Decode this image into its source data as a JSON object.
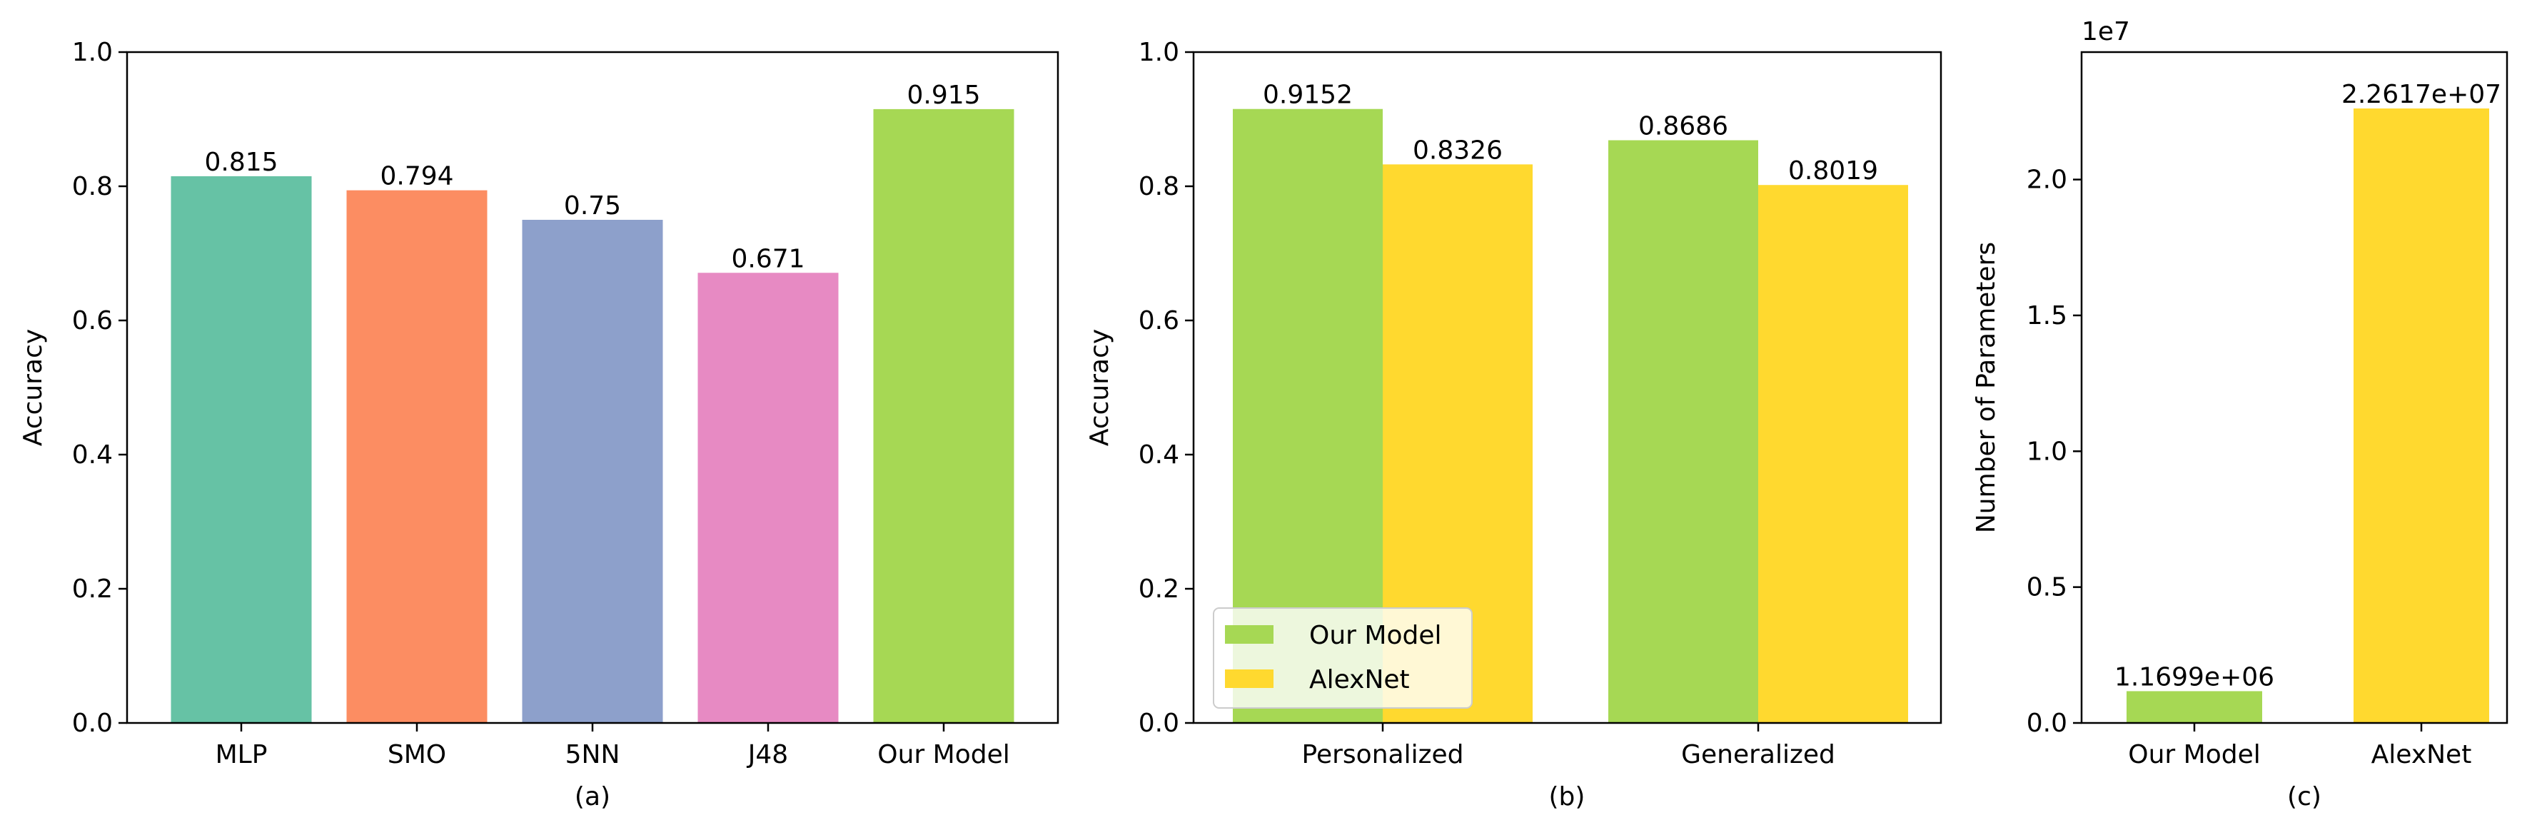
{
  "chart_data": [
    {
      "type": "bar",
      "caption": "(a)",
      "xlabel": "",
      "ylabel": "Accuracy",
      "ylim": [
        0,
        1.0
      ],
      "yticks": [
        "0.0",
        "0.2",
        "0.4",
        "0.6",
        "0.8",
        "1.0"
      ],
      "categories": [
        "MLP",
        "SMO",
        "5NN",
        "J48",
        "Our Model"
      ],
      "values": [
        0.815,
        0.794,
        0.75,
        0.671,
        0.915
      ],
      "value_labels": [
        "0.815",
        "0.794",
        "0.75",
        "0.671",
        "0.915"
      ],
      "colors": [
        "#66c2a5",
        "#fc8d62",
        "#8da0cb",
        "#e78ac3",
        "#a6d854"
      ],
      "grid": false
    },
    {
      "type": "bar",
      "caption": "(b)",
      "xlabel": "",
      "ylabel": "Accuracy",
      "ylim": [
        0,
        1.0
      ],
      "yticks": [
        "0.0",
        "0.2",
        "0.4",
        "0.6",
        "0.8",
        "1.0"
      ],
      "categories": [
        "Personalized",
        "Generalized"
      ],
      "series": [
        {
          "name": "Our Model",
          "color": "#a6d854",
          "values": [
            0.9152,
            0.8686
          ],
          "value_labels": [
            "0.9152",
            "0.8686"
          ]
        },
        {
          "name": "AlexNet",
          "color": "#ffd92f",
          "values": [
            0.8326,
            0.8019
          ],
          "value_labels": [
            "0.8326",
            "0.8019"
          ]
        }
      ],
      "legend": "lower-left",
      "grid": false
    },
    {
      "type": "bar",
      "caption": "(c)",
      "xlabel": "",
      "ylabel": "Number of Parameters",
      "scale_label": "1e7",
      "ylim": [
        0,
        2.4691
      ],
      "yticks": [
        "0.0",
        "0.5",
        "1.0",
        "1.5",
        "2.0"
      ],
      "categories": [
        "Our Model",
        "AlexNet"
      ],
      "values": [
        1169900,
        22617000
      ],
      "value_labels": [
        "1.1699e+06",
        "2.2617e+07"
      ],
      "colors": [
        "#a6d854",
        "#ffd92f"
      ],
      "grid": false
    }
  ]
}
